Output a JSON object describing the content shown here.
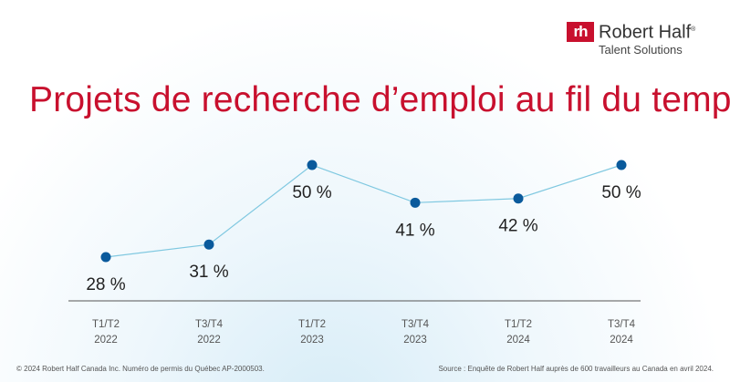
{
  "logo": {
    "mark": "rh",
    "name": "Robert Half",
    "registered": "®",
    "sub": "Talent Solutions"
  },
  "title": "Projets de recherche d’emploi au fil du temps",
  "chart_data": {
    "type": "line",
    "title": "Projets de recherche d’emploi au fil du temps",
    "categories": [
      [
        "T1/T2",
        "2022"
      ],
      [
        "T3/T4",
        "2022"
      ],
      [
        "T1/T2",
        "2023"
      ],
      [
        "T3/T4",
        "2023"
      ],
      [
        "T1/T2",
        "2024"
      ],
      [
        "T3/T4",
        "2024"
      ]
    ],
    "values": [
      28,
      31,
      50,
      41,
      42,
      50
    ],
    "labels": [
      "28 %",
      "31 %",
      "50 %",
      "41 %",
      "42 %",
      "50 %"
    ],
    "unit": "%",
    "ylim": [
      28,
      50
    ],
    "grid": false,
    "line_color": "#7fc8e0",
    "marker_color": "#0a5a9c"
  },
  "footer": {
    "left": "© 2024 Robert Half Canada Inc. Numéro de permis du Québec AP-2000503.",
    "right": "Source : Enquête de Robert Half auprès de 600 travailleurs au Canada en avril 2024."
  }
}
